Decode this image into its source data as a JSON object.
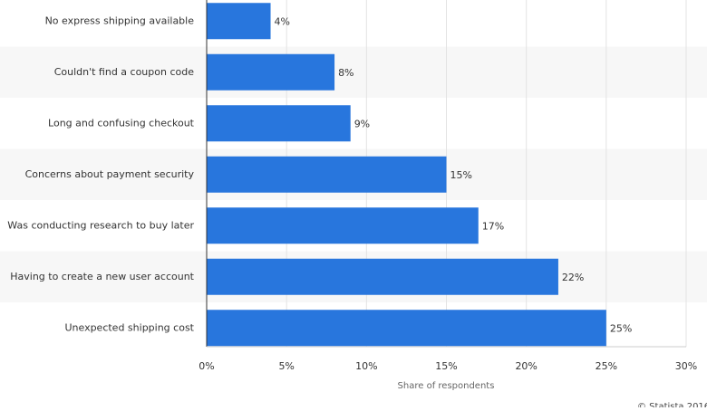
{
  "chart_data": {
    "type": "bar",
    "orientation": "horizontal",
    "categories": [
      "No express shipping available",
      "Couldn't find a coupon code",
      "Long and confusing checkout",
      "Concerns about payment security",
      "Was conducting research to buy later",
      "Having to create a new user account",
      "Unexpected shipping cost"
    ],
    "values": [
      4,
      8,
      9,
      15,
      17,
      22,
      25
    ],
    "value_labels": [
      "4%",
      "8%",
      "9%",
      "15%",
      "17%",
      "22%",
      "25%"
    ],
    "color": "#2876dd",
    "xlabel": "Share of respondents",
    "xlim": [
      0,
      30
    ],
    "xticks": [
      {
        "value": 0,
        "label": "0%"
      },
      {
        "value": 5,
        "label": "5%"
      },
      {
        "value": 10,
        "label": "10%"
      },
      {
        "value": 15,
        "label": "15%"
      },
      {
        "value": 20,
        "label": "20%"
      },
      {
        "value": 25,
        "label": "25%"
      },
      {
        "value": 30,
        "label": "30%"
      }
    ],
    "grid": true,
    "credit": "© Statista 2016"
  }
}
